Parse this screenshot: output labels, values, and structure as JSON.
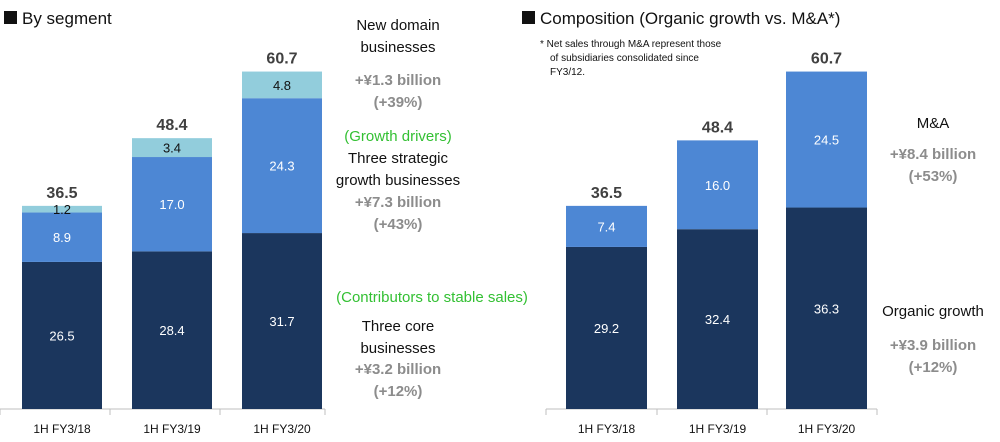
{
  "chart_data": [
    {
      "type": "bar",
      "stacked": true,
      "title": "By segment",
      "categories": [
        "1H FY3/18",
        "1H FY3/19",
        "1H FY3/20"
      ],
      "totals": [
        "36.5",
        "48.4",
        "60.7"
      ],
      "series": [
        {
          "name": "Three core businesses",
          "values": [
            26.5,
            28.4,
            31.7
          ],
          "labels": [
            "26.5",
            "28.4",
            "31.7"
          ],
          "color": "#1b365d"
        },
        {
          "name": "Three strategic growth businesses",
          "values": [
            8.9,
            17.0,
            24.3
          ],
          "labels": [
            "8.9",
            "17.0",
            "24.3"
          ],
          "color": "#4d87d4"
        },
        {
          "name": "New domain businesses",
          "values": [
            1.2,
            3.4,
            4.8
          ],
          "labels": [
            "1.2",
            "3.4",
            "4.8"
          ],
          "color": "#92cddc"
        }
      ],
      "annotations": {
        "new_domain": {
          "line1": "New domain",
          "line2": "businesses",
          "growth": "+¥1.3 billion",
          "pct": "(+39%)"
        },
        "growth_drivers": {
          "tag": "(Growth drivers)",
          "line1": "Three strategic",
          "line2": "growth businesses",
          "growth": "+¥7.3 billion",
          "pct": "(+43%)"
        },
        "core": {
          "tag": "(Contributors to stable sales)",
          "line1": "Three core",
          "line2": "businesses",
          "growth": "+¥3.2 billion",
          "pct": "(+12%)"
        }
      },
      "grid": false,
      "ylim": [
        0,
        66
      ]
    },
    {
      "type": "bar",
      "stacked": true,
      "title": "Composition (Organic growth vs. M&A*)",
      "footnote": [
        "* Net sales through M&A represent those",
        "of subsidiaries consolidated since",
        "FY3/12."
      ],
      "categories": [
        "1H FY3/18",
        "1H FY3/19",
        "1H FY3/20"
      ],
      "totals": [
        "36.5",
        "48.4",
        "60.7"
      ],
      "series": [
        {
          "name": "Organic growth",
          "values": [
            29.2,
            32.4,
            36.3
          ],
          "labels": [
            "29.2",
            "32.4",
            "36.3"
          ],
          "color": "#1b365d"
        },
        {
          "name": "M&A",
          "values": [
            7.4,
            16.0,
            24.5
          ],
          "labels": [
            "7.4",
            "16.0",
            "24.5"
          ],
          "color": "#4d87d4"
        }
      ],
      "annotations": {
        "ma": {
          "label": "M&A",
          "growth": "+¥8.4 billion",
          "pct": "(+53%)"
        },
        "organic": {
          "label": "Organic growth",
          "growth": "+¥3.9 billion",
          "pct": "(+12%)"
        }
      },
      "grid": false,
      "ylim": [
        0,
        66
      ]
    }
  ],
  "colors": {
    "accent_green": "#33c033",
    "muted_gray": "#8c8c8c",
    "title_square": "#111111"
  }
}
